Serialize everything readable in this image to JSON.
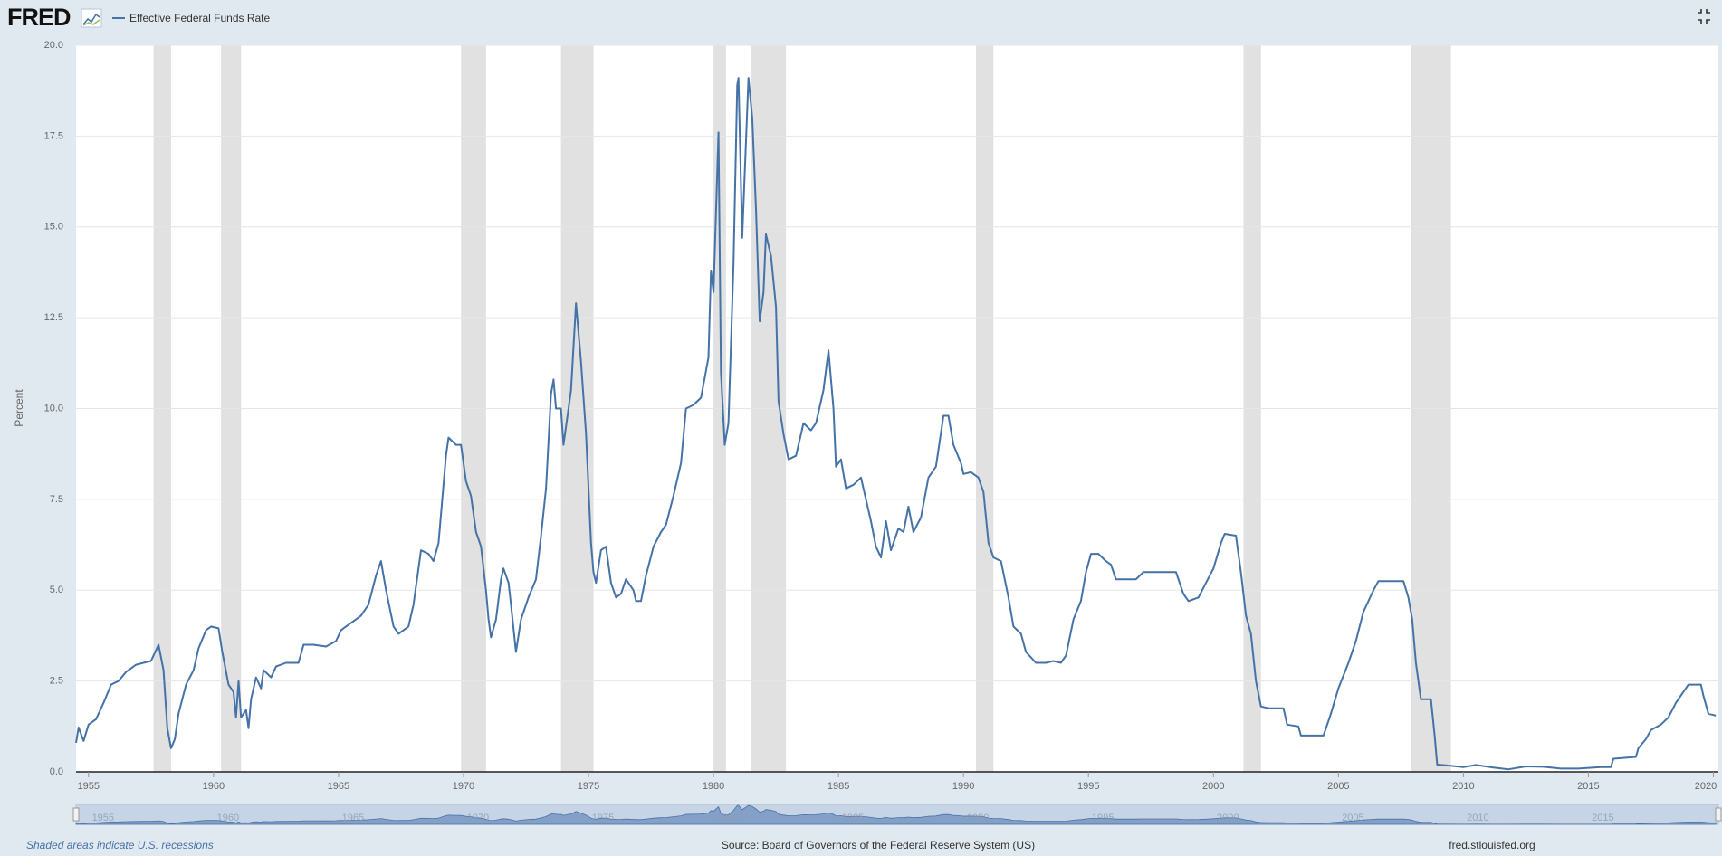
{
  "chart_data": {
    "type": "line",
    "logo": "FRED",
    "ylabel": "Percent",
    "note": "Shaded areas indicate U.S. recessions",
    "source": "Source: Board of Governors of the Federal Reserve System (US)",
    "site": "fred.stlouisfed.org",
    "xlim": [
      1954.5,
      2020.2
    ],
    "xticks": [
      1955,
      1960,
      1965,
      1970,
      1975,
      1980,
      1985,
      1990,
      1995,
      2000,
      2005,
      2010,
      2015,
      2020
    ],
    "ylim": [
      0,
      20
    ],
    "yticks": [
      {
        "value": 0,
        "label": "0.0"
      },
      2.5,
      {
        "value": 5,
        "label": "5.0"
      },
      7.5,
      {
        "value": 10,
        "label": "10.0"
      },
      12.5,
      {
        "value": 15,
        "label": "15.0"
      },
      17.5,
      {
        "value": 20,
        "label": "20.0"
      }
    ],
    "grid": true,
    "recessions": [
      [
        1957.6,
        1958.3
      ],
      [
        1960.3,
        1961.1
      ],
      [
        1969.9,
        1970.9
      ],
      [
        1973.9,
        1975.2
      ],
      [
        1980.0,
        1980.5
      ],
      [
        1981.5,
        1982.9
      ],
      [
        1990.5,
        1991.2
      ],
      [
        2001.2,
        2001.9
      ],
      [
        2007.9,
        2009.5
      ]
    ],
    "recession_color": "#e1e1e1",
    "x": [
      1954.5,
      1954.6,
      1954.8,
      1955.0,
      1955.3,
      1955.6,
      1955.9,
      1956.2,
      1956.5,
      1956.9,
      1957.2,
      1957.5,
      1957.8,
      1958.0,
      1958.15,
      1958.3,
      1958.45,
      1958.6,
      1958.9,
      1959.2,
      1959.4,
      1959.7,
      1959.9,
      1960.2,
      1960.35,
      1960.6,
      1960.8,
      1960.9,
      1961.0,
      1961.1,
      1961.3,
      1961.4,
      1961.5,
      1961.7,
      1961.9,
      1962.0,
      1962.3,
      1962.5,
      1962.9,
      1963.4,
      1963.6,
      1964.0,
      1964.5,
      1964.9,
      1965.1,
      1965.5,
      1965.9,
      1966.2,
      1966.5,
      1966.7,
      1966.9,
      1967.2,
      1967.4,
      1967.6,
      1967.8,
      1968.0,
      1968.3,
      1968.6,
      1968.8,
      1969.0,
      1969.3,
      1969.4,
      1969.7,
      1969.9,
      1970.1,
      1970.3,
      1970.5,
      1970.7,
      1970.9,
      1971.0,
      1971.1,
      1971.3,
      1971.5,
      1971.6,
      1971.8,
      1971.9,
      1972.1,
      1972.3,
      1972.6,
      1972.9,
      1973.1,
      1973.3,
      1973.5,
      1973.6,
      1973.7,
      1973.9,
      1974.0,
      1974.3,
      1974.5,
      1974.7,
      1974.9,
      1975.1,
      1975.2,
      1975.3,
      1975.5,
      1975.7,
      1975.9,
      1976.1,
      1976.3,
      1976.5,
      1976.8,
      1976.9,
      1977.1,
      1977.3,
      1977.6,
      1977.9,
      1978.1,
      1978.4,
      1978.7,
      1978.9,
      1979.2,
      1979.5,
      1979.8,
      1979.9,
      1980.0,
      1980.2,
      1980.3,
      1980.45,
      1980.6,
      1980.8,
      1980.95,
      1981.0,
      1981.15,
      1981.4,
      1981.55,
      1981.7,
      1981.85,
      1982.0,
      1982.1,
      1982.3,
      1982.5,
      1982.6,
      1982.8,
      1983.0,
      1983.3,
      1983.6,
      1983.9,
      1984.1,
      1984.4,
      1984.6,
      1984.8,
      1984.9,
      1985.1,
      1985.3,
      1985.6,
      1985.9,
      1986.0,
      1986.3,
      1986.5,
      1986.7,
      1986.9,
      1987.1,
      1987.4,
      1987.6,
      1987.8,
      1988.0,
      1988.3,
      1988.6,
      1988.9,
      1989.2,
      1989.4,
      1989.6,
      1989.9,
      1990.0,
      1990.3,
      1990.6,
      1990.8,
      1991.0,
      1991.2,
      1991.5,
      1991.8,
      1992.0,
      1992.3,
      1992.5,
      1992.9,
      1993.3,
      1993.6,
      1993.9,
      1994.1,
      1994.4,
      1994.7,
      1994.9,
      1995.1,
      1995.4,
      1995.7,
      1995.9,
      1996.1,
      1996.5,
      1996.9,
      1997.2,
      1997.6,
      1998.0,
      1998.5,
      1998.8,
      1999.0,
      1999.4,
      1999.7,
      2000.0,
      2000.3,
      2000.45,
      2000.9,
      2001.1,
      2001.3,
      2001.5,
      2001.7,
      2001.9,
      2002.2,
      2002.8,
      2002.95,
      2003.4,
      2003.5,
      2004.4,
      2004.7,
      2005.0,
      2005.4,
      2005.7,
      2006.0,
      2006.4,
      2006.6,
      2007.6,
      2007.8,
      2007.95,
      2008.1,
      2008.3,
      2008.7,
      2008.85,
      2008.95,
      2009.3,
      2010.0,
      2010.5,
      2011.2,
      2011.8,
      2012.5,
      2013.2,
      2013.9,
      2014.6,
      2015.5,
      2015.9,
      2016.0,
      2016.9,
      2017.0,
      2017.3,
      2017.5,
      2017.9,
      2018.2,
      2018.5,
      2018.8,
      2019.0,
      2019.5,
      2019.6,
      2019.8,
      2020.1
    ],
    "series": [
      {
        "name": "Effective Federal Funds Rate",
        "color": "#4572a7",
        "values": [
          0.8,
          1.22,
          0.85,
          1.3,
          1.45,
          1.9,
          2.4,
          2.5,
          2.75,
          2.95,
          3.0,
          3.05,
          3.5,
          2.8,
          1.2,
          0.65,
          0.9,
          1.6,
          2.4,
          2.8,
          3.4,
          3.9,
          4.0,
          3.95,
          3.3,
          2.4,
          2.2,
          1.5,
          2.5,
          1.5,
          1.7,
          1.2,
          2.0,
          2.6,
          2.3,
          2.8,
          2.6,
          2.9,
          3.0,
          3.0,
          3.5,
          3.5,
          3.45,
          3.6,
          3.9,
          4.1,
          4.3,
          4.6,
          5.4,
          5.8,
          5.0,
          4.0,
          3.8,
          3.9,
          4.0,
          4.6,
          6.1,
          6.0,
          5.8,
          6.3,
          8.7,
          9.2,
          9.0,
          9.0,
          8.0,
          7.6,
          6.6,
          6.2,
          5.0,
          4.2,
          3.7,
          4.2,
          5.3,
          5.6,
          5.2,
          4.6,
          3.3,
          4.2,
          4.8,
          5.3,
          6.5,
          7.8,
          10.4,
          10.8,
          10.0,
          10.0,
          9.0,
          10.5,
          12.9,
          11.3,
          9.3,
          6.3,
          5.5,
          5.2,
          6.1,
          6.2,
          5.2,
          4.8,
          4.9,
          5.3,
          5.0,
          4.7,
          4.7,
          5.4,
          6.2,
          6.6,
          6.8,
          7.6,
          8.5,
          10.0,
          10.1,
          10.3,
          11.4,
          13.8,
          13.2,
          17.6,
          11.0,
          9.0,
          9.6,
          14.0,
          18.9,
          19.1,
          14.7,
          19.1,
          18.0,
          15.5,
          12.4,
          13.2,
          14.8,
          14.2,
          12.8,
          10.2,
          9.3,
          8.6,
          8.7,
          9.6,
          9.4,
          9.6,
          10.5,
          11.6,
          10.0,
          8.4,
          8.6,
          7.8,
          7.9,
          8.1,
          7.8,
          6.9,
          6.2,
          5.9,
          6.9,
          6.1,
          6.7,
          6.6,
          7.3,
          6.6,
          7.0,
          8.1,
          8.4,
          9.8,
          9.8,
          9.0,
          8.5,
          8.2,
          8.25,
          8.1,
          7.7,
          6.3,
          5.9,
          5.8,
          4.8,
          4.0,
          3.8,
          3.3,
          3.0,
          3.0,
          3.05,
          3.0,
          3.2,
          4.2,
          4.7,
          5.5,
          6.0,
          6.0,
          5.8,
          5.7,
          5.3,
          5.3,
          5.3,
          5.5,
          5.5,
          5.5,
          5.5,
          4.9,
          4.7,
          4.8,
          5.2,
          5.6,
          6.3,
          6.55,
          6.5,
          5.5,
          4.3,
          3.8,
          2.5,
          1.8,
          1.75,
          1.75,
          1.3,
          1.25,
          1.0,
          1.0,
          1.6,
          2.3,
          3.0,
          3.6,
          4.4,
          5.0,
          5.25,
          5.25,
          4.8,
          4.2,
          3.0,
          2.0,
          2.0,
          1.0,
          0.2,
          0.18,
          0.13,
          0.19,
          0.12,
          0.07,
          0.15,
          0.14,
          0.09,
          0.09,
          0.13,
          0.13,
          0.36,
          0.41,
          0.65,
          0.9,
          1.15,
          1.3,
          1.5,
          1.9,
          2.2,
          2.4,
          2.4,
          2.1,
          1.6,
          1.55
        ]
      }
    ]
  }
}
